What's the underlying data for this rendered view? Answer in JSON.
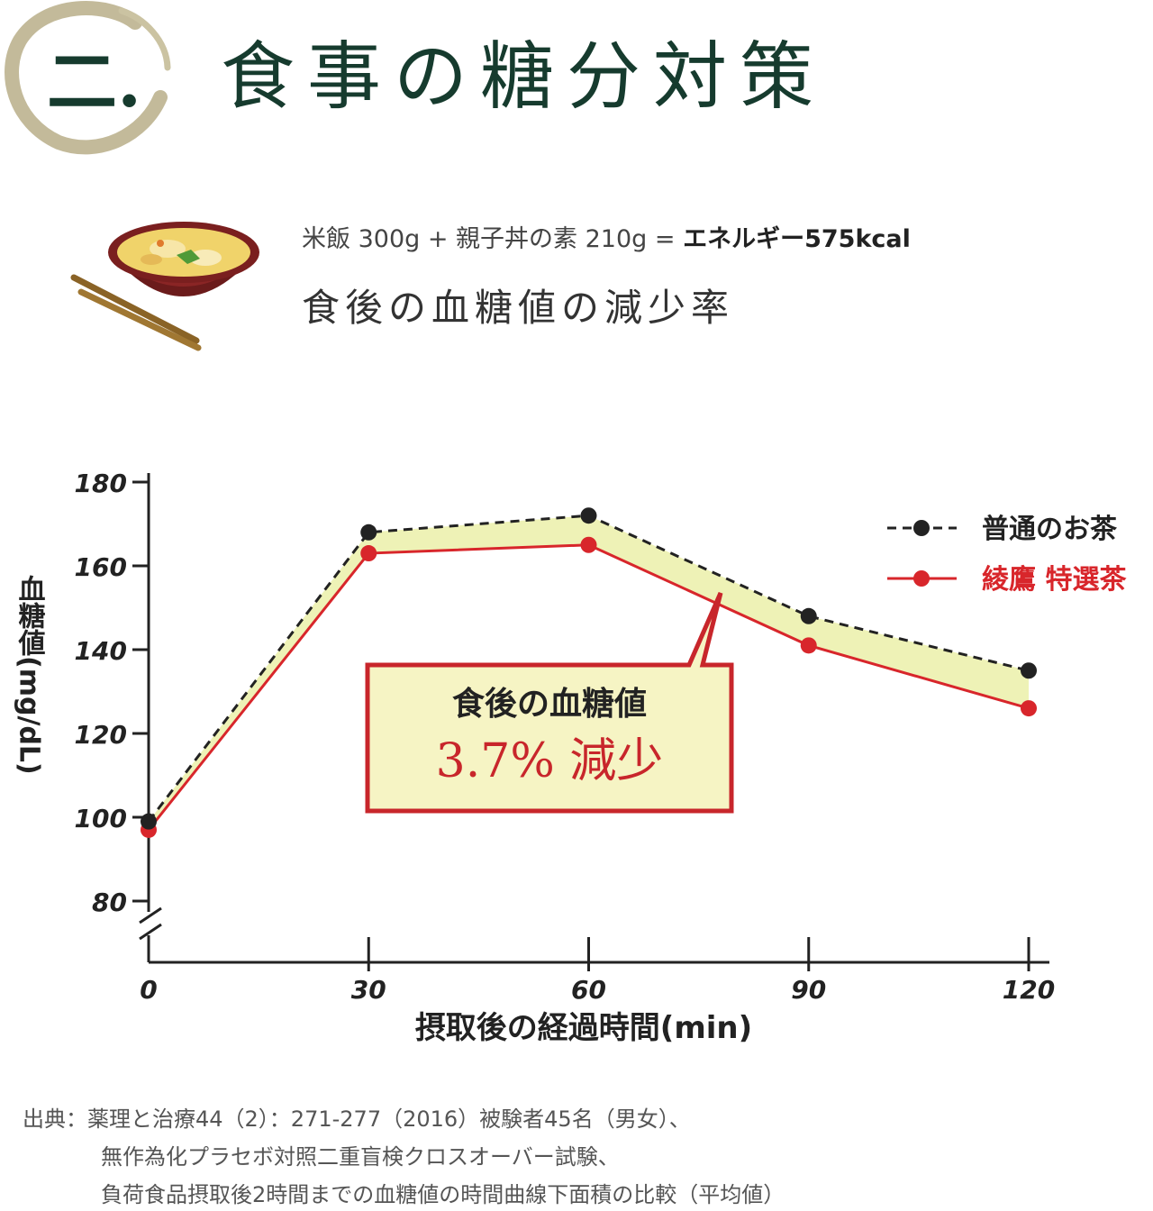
{
  "header": {
    "badge": "二.",
    "title": "食事の糖分対策"
  },
  "meal": {
    "prefix": "米飯 300g + 親子丼の素 210g = ",
    "energy": "エネルギー575kcal",
    "icon": "oyakodon-bowl-icon"
  },
  "subtitle": "食後の血糖値の減少率",
  "callout": {
    "line1": "食後の血糖値",
    "line2": "3.7% 減少"
  },
  "source": {
    "line1": "出典：薬理と治療44（2）：271-277（2016）被験者45名（男女）、",
    "line2": "無作為化プラセボ対照二重盲検クロスオーバー試験、",
    "line3": "負荷食品摂取後2時間までの血糖値の時間曲線下面積の比較（平均値）"
  },
  "colors": {
    "dark_green": "#163b2e",
    "regular_tea": "#222222",
    "ayataka_tea": "#d8262b",
    "fill_band": "#eef2b6",
    "callout_border": "#c8262b"
  },
  "chart_data": {
    "type": "line",
    "x": [
      0,
      30,
      60,
      90,
      120
    ],
    "xticks": [
      "0",
      "30",
      "60",
      "90",
      "120"
    ],
    "yticks": [
      "180",
      "160",
      "140",
      "120",
      "100",
      "80"
    ],
    "xlim": [
      0,
      120
    ],
    "ylim": [
      80,
      180
    ],
    "xlabel": "摂取後の経過時間(min)",
    "ylabel": "血糖値(mg/dL)",
    "legend_position": "top-right",
    "axis_break": true,
    "series": [
      {
        "name": "普通のお茶",
        "style": "dashed",
        "color": "#222222",
        "values": [
          99,
          168,
          172,
          148,
          135
        ]
      },
      {
        "name": "綾鷹 特選茶",
        "style": "solid",
        "color": "#d8262b",
        "values": [
          97,
          163,
          165,
          141,
          126
        ]
      }
    ]
  }
}
